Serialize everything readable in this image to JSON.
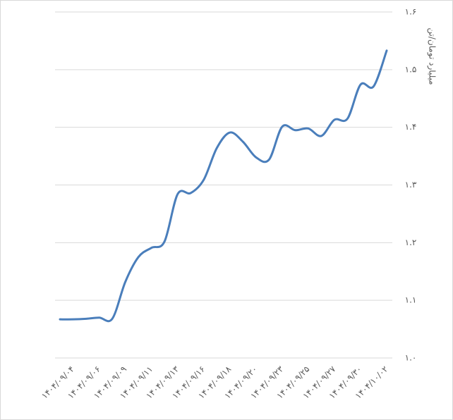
{
  "chart_data": {
    "type": "line",
    "y_label": "میلیارد تومان/تن",
    "categories": [
      null,
      "۱۴۰۴/۰۹/۰۴",
      null,
      "۱۴۰۴/۰۹/۰۶",
      null,
      "۱۴۰۴/۰۹/۰۹",
      null,
      "۱۴۰۴/۰۹/۱۱",
      null,
      "۱۴۰۴/۰۹/۱۳",
      null,
      "۱۴۰۴/۰۹/۱۶",
      null,
      "۱۴۰۴/۰۹/۱۸",
      null,
      "۱۴۰۴/۰۹/۲۰",
      null,
      "۱۴۰۴/۰۹/۲۳",
      null,
      "۱۴۰۴/۰۹/۲۵",
      null,
      "۱۴۰۴/۰۹/۲۷",
      null,
      "۱۴۰۴/۰۹/۳۰",
      null,
      "۱۴۰۴/۱۰/۰۲"
    ],
    "values": [
      1.067,
      1.067,
      1.068,
      1.07,
      1.068,
      1.132,
      1.175,
      1.191,
      1.202,
      1.284,
      1.286,
      1.309,
      1.364,
      1.391,
      1.375,
      1.348,
      1.344,
      1.401,
      1.395,
      1.398,
      1.385,
      1.413,
      1.415,
      1.474,
      1.471,
      1.533
    ],
    "color": "#4a7ebb",
    "ylim": [
      1.0,
      1.6
    ],
    "yticks": [
      {
        "value": 1.0,
        "label": "۱.۰"
      },
      {
        "value": 1.1,
        "label": "۱.۱"
      },
      {
        "value": 1.2,
        "label": "۱.۲"
      },
      {
        "value": 1.3,
        "label": "۱.۳"
      },
      {
        "value": 1.4,
        "label": "۱.۴"
      },
      {
        "value": 1.5,
        "label": "۱.۵"
      },
      {
        "value": 1.6,
        "label": "۱.۶"
      }
    ],
    "grid": true
  }
}
